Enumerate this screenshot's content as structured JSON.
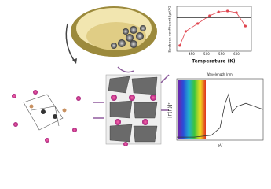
{
  "seebeck_chart": {
    "type": "line",
    "title": "Seebeck coefficient (μV/K)",
    "x_label": "Temperature (K)",
    "x": [
      410,
      430,
      470,
      510,
      540,
      570,
      600,
      630
    ],
    "values": [
      125,
      188,
      223,
      258,
      275,
      279,
      272,
      212
    ],
    "color": "#e0454f",
    "reference_line": 250,
    "xlim": [
      400,
      650
    ],
    "xticks": [
      450,
      500,
      550,
      600
    ],
    "ylim": [
      100,
      300
    ]
  },
  "spectrum_chart": {
    "type": "line",
    "title": "Wavelength (nm)",
    "y_label": "[F(R)]²",
    "x_label": "eV",
    "x": [
      1,
      2,
      3,
      3.5,
      3.8,
      4.0,
      4.2,
      4.5,
      5,
      5.5,
      6
    ],
    "values": [
      0.05,
      0.05,
      0.08,
      0.2,
      0.6,
      0.75,
      0.45,
      0.55,
      0.6,
      0.55,
      0.5
    ],
    "color": "#333333",
    "xlim": [
      1,
      6
    ],
    "ylim": [
      0,
      1
    ]
  }
}
